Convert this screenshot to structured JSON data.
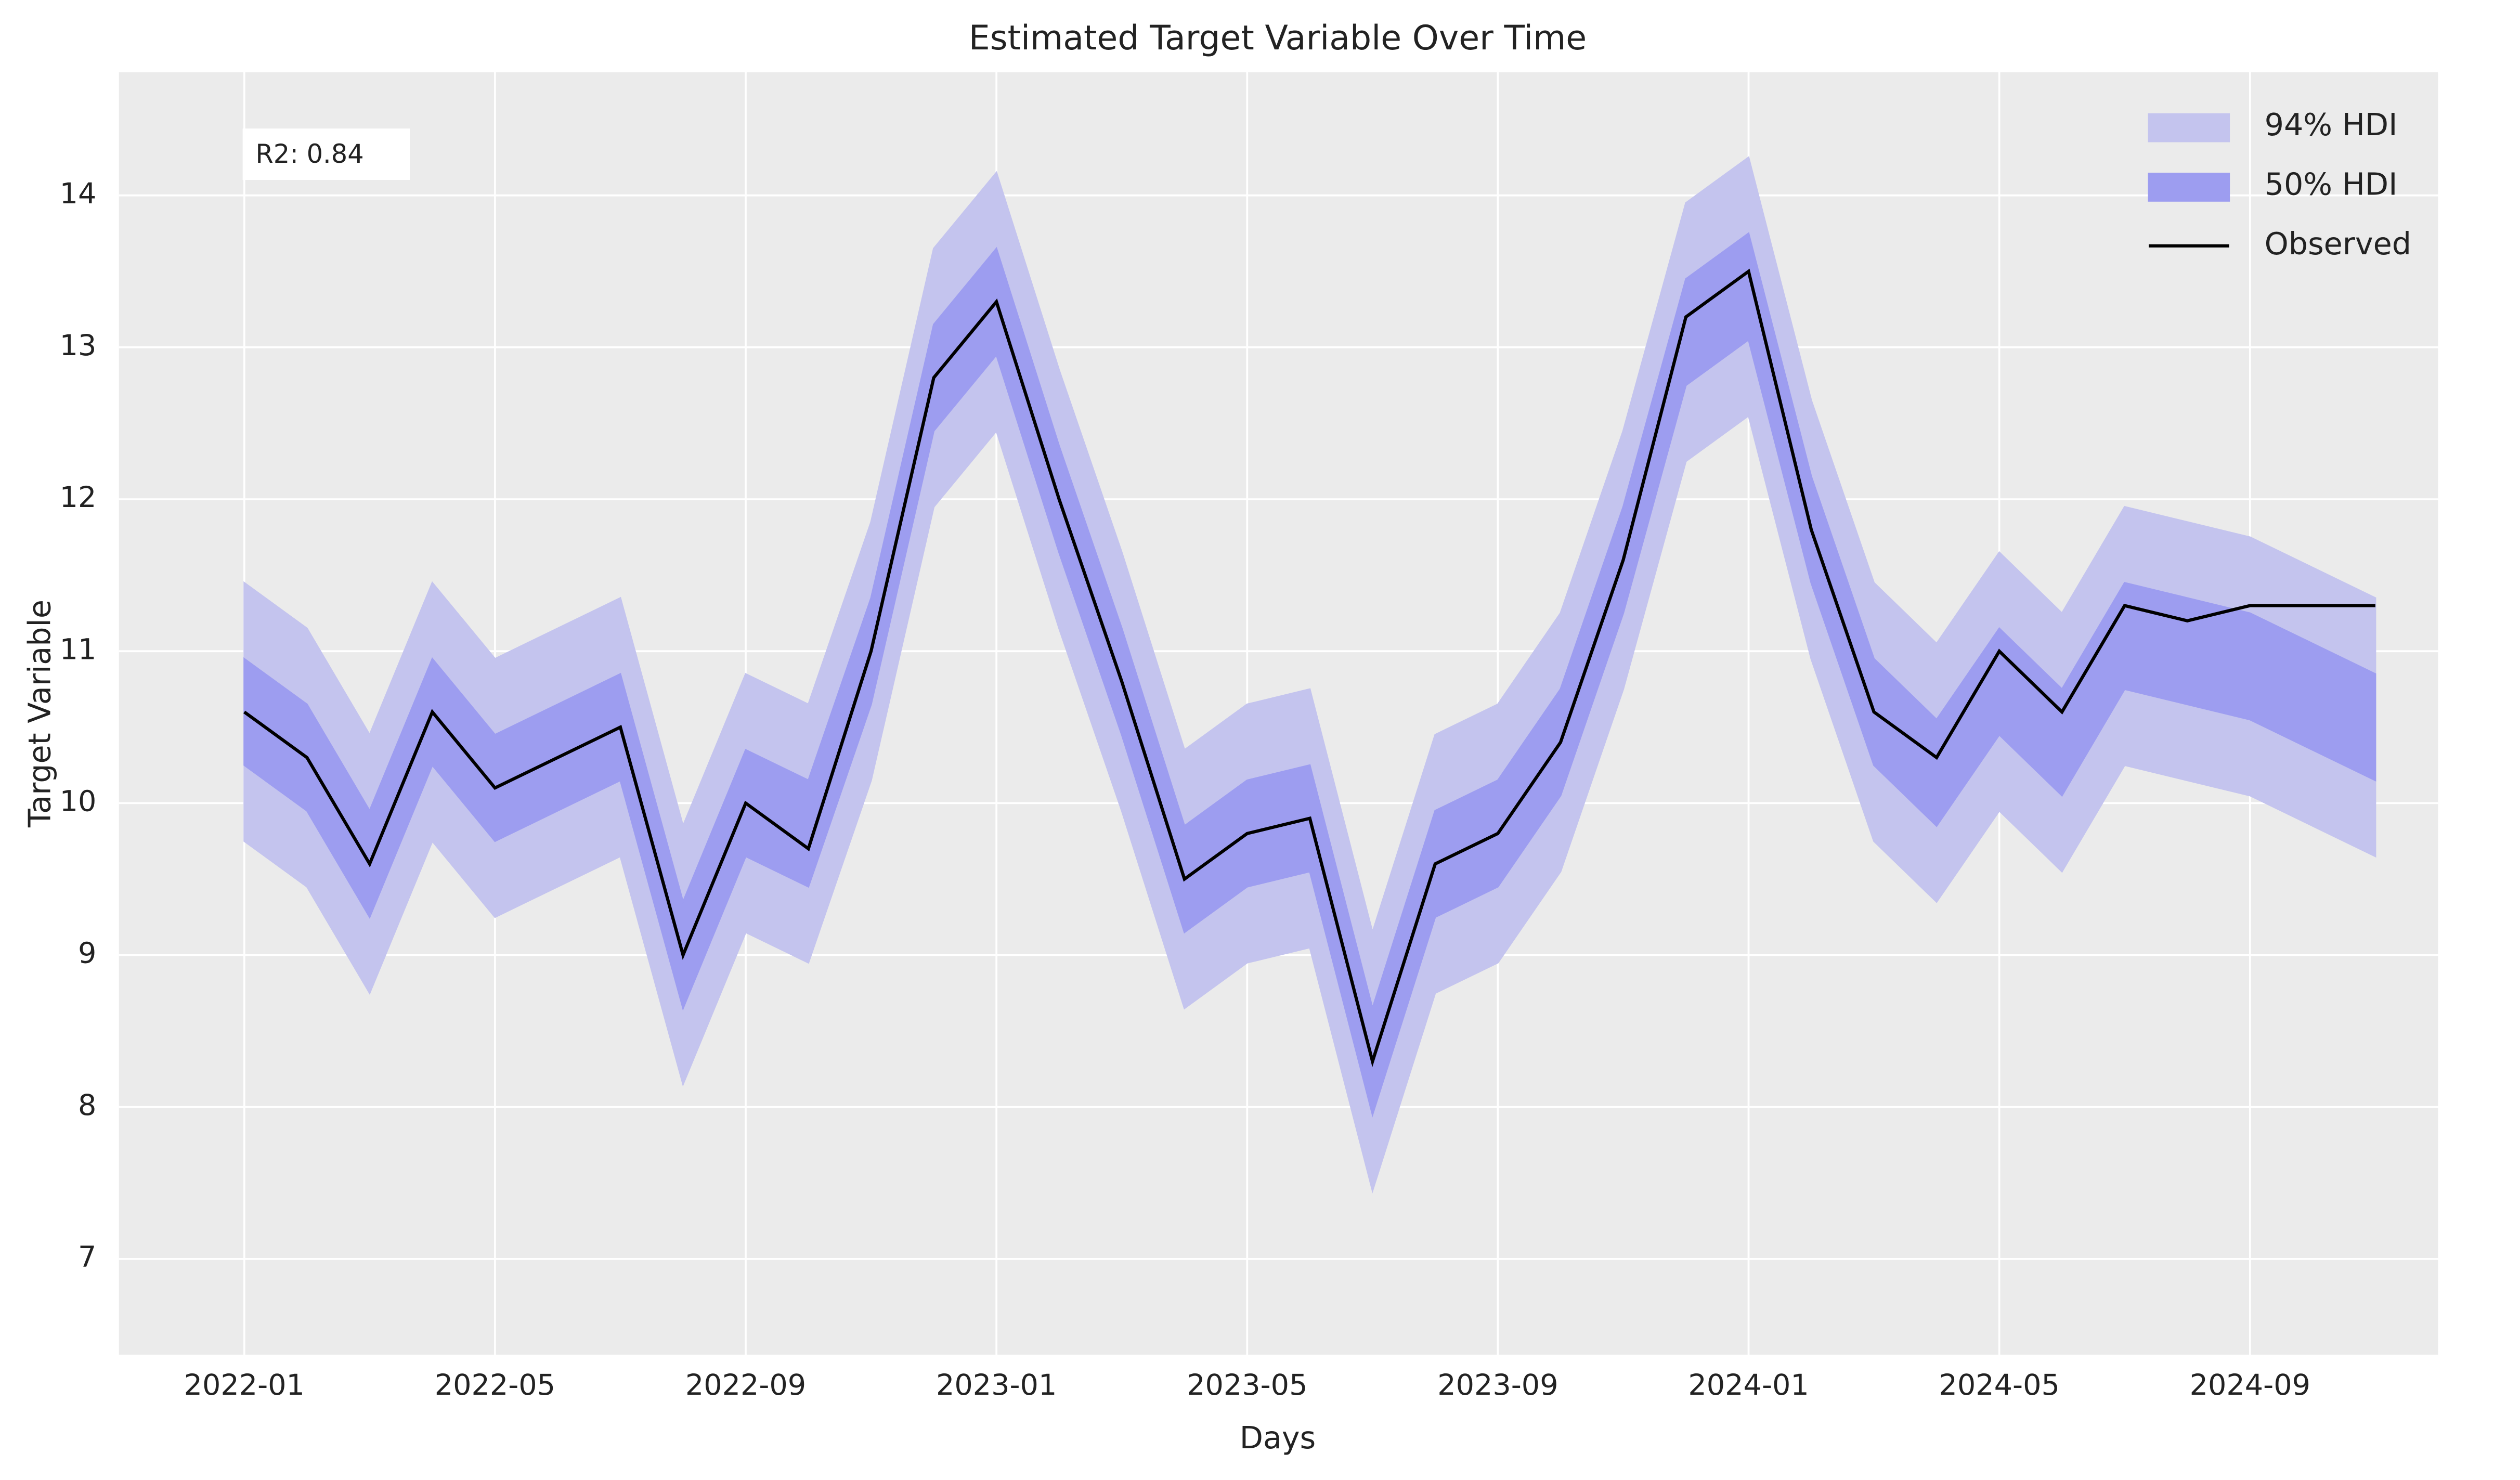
{
  "chart_data": {
    "type": "line_band",
    "title": "Estimated Target Variable Over Time",
    "xlabel": "Days",
    "ylabel": "Target Variable",
    "annotation": "R2: 0.84",
    "x": [
      "2022-01",
      "2022-02",
      "2022-03",
      "2022-04",
      "2022-05",
      "2022-06",
      "2022-07",
      "2022-08",
      "2022-09",
      "2022-10",
      "2022-11",
      "2022-12",
      "2023-01",
      "2023-02",
      "2023-03",
      "2023-04",
      "2023-05",
      "2023-06",
      "2023-07",
      "2023-08",
      "2023-09",
      "2023-10",
      "2023-11",
      "2023-12",
      "2024-01",
      "2024-02",
      "2024-03",
      "2024-04",
      "2024-05",
      "2024-06",
      "2024-07",
      "2024-08",
      "2024-09",
      "2024-10",
      "2024-11"
    ],
    "series": [
      {
        "name": "94% HDI",
        "color": "#c4c4ee",
        "lower": [
          9.75,
          9.45,
          8.75,
          9.75,
          9.25,
          9.45,
          9.65,
          8.15,
          9.15,
          8.95,
          10.15,
          11.95,
          12.45,
          11.15,
          9.95,
          8.65,
          8.95,
          9.05,
          7.45,
          8.75,
          8.95,
          9.55,
          10.75,
          12.25,
          12.55,
          10.95,
          9.75,
          9.35,
          9.95,
          9.55,
          10.25,
          10.15,
          10.05,
          9.85,
          9.65
        ],
        "upper": [
          11.45,
          11.15,
          10.45,
          11.45,
          10.95,
          11.15,
          11.35,
          9.85,
          10.85,
          10.65,
          11.85,
          13.65,
          14.15,
          12.85,
          11.65,
          10.35,
          10.65,
          10.75,
          9.15,
          10.45,
          10.65,
          11.25,
          12.45,
          13.95,
          14.25,
          12.65,
          11.45,
          11.05,
          11.65,
          11.25,
          11.95,
          11.85,
          11.75,
          11.55,
          11.35
        ]
      },
      {
        "name": "50% HDI",
        "color": "#9d9df0",
        "lower": [
          10.25,
          9.95,
          9.25,
          10.25,
          9.75,
          9.95,
          10.15,
          8.65,
          9.65,
          9.45,
          10.65,
          12.45,
          12.95,
          11.65,
          10.45,
          9.15,
          9.45,
          9.55,
          7.95,
          9.25,
          9.45,
          10.05,
          11.25,
          12.75,
          13.05,
          11.45,
          10.25,
          9.85,
          10.45,
          10.05,
          10.75,
          10.65,
          10.55,
          10.35,
          10.15
        ],
        "upper": [
          10.95,
          10.65,
          9.95,
          10.95,
          10.45,
          10.65,
          10.85,
          9.35,
          10.35,
          10.15,
          11.35,
          13.15,
          13.65,
          12.35,
          11.15,
          9.85,
          10.15,
          10.25,
          8.65,
          9.95,
          10.15,
          10.75,
          11.95,
          13.45,
          13.75,
          12.15,
          10.95,
          10.55,
          11.15,
          10.75,
          11.45,
          11.35,
          11.25,
          11.05,
          10.85
        ]
      },
      {
        "name": "Observed",
        "color": "#000000",
        "values": [
          10.6,
          10.3,
          9.6,
          10.6,
          10.1,
          10.3,
          10.5,
          9.0,
          10.0,
          9.7,
          11.0,
          12.8,
          13.3,
          12.0,
          10.8,
          9.5,
          9.8,
          9.9,
          8.3,
          9.6,
          9.8,
          10.4,
          11.6,
          13.2,
          13.5,
          11.8,
          10.6,
          10.3,
          11.0,
          10.6,
          11.3,
          11.2,
          11.3,
          11.3,
          11.3
        ]
      }
    ],
    "xlim": [
      "2021-11",
      "2024-12"
    ],
    "xticks": [
      "2022-01",
      "2022-05",
      "2022-09",
      "2023-01",
      "2023-05",
      "2023-09",
      "2024-01",
      "2024-05",
      "2024-09"
    ],
    "ylim": [
      6.37,
      14.81
    ],
    "yticks": [
      7,
      8,
      9,
      10,
      11,
      12,
      13,
      14
    ],
    "grid": true,
    "legend": "upper right"
  }
}
